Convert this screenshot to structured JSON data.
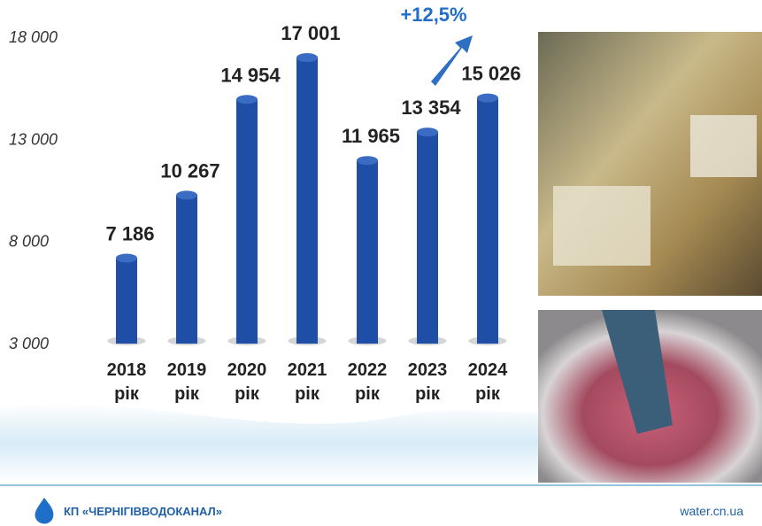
{
  "chart_data": {
    "type": "bar",
    "categories": [
      "2018 рік",
      "2019 рік",
      "2020 рік",
      "2021 рік",
      "2022 рік",
      "2023 рік",
      "2024 рік"
    ],
    "values": [
      7186,
      10267,
      14954,
      17001,
      11965,
      13354,
      15026
    ],
    "value_labels": [
      "7 186",
      "10 267",
      "14 954",
      "17 001",
      "11 965",
      "13 354",
      "15 026"
    ],
    "color": "#1f4ea6",
    "ylim": [
      3000,
      18000
    ],
    "yticks": [
      {
        "value": 3000,
        "label": "3 000"
      },
      {
        "value": 8000,
        "label": "8 000"
      },
      {
        "value": 13000,
        "label": "13 000"
      },
      {
        "value": 18000,
        "label": "18 000"
      }
    ],
    "grid": false,
    "annotation": "+12,5%"
  },
  "footer": {
    "org": "КП «ЧЕРНІГІВВОДОКАНАЛ»",
    "site": "water.cn.ua"
  }
}
